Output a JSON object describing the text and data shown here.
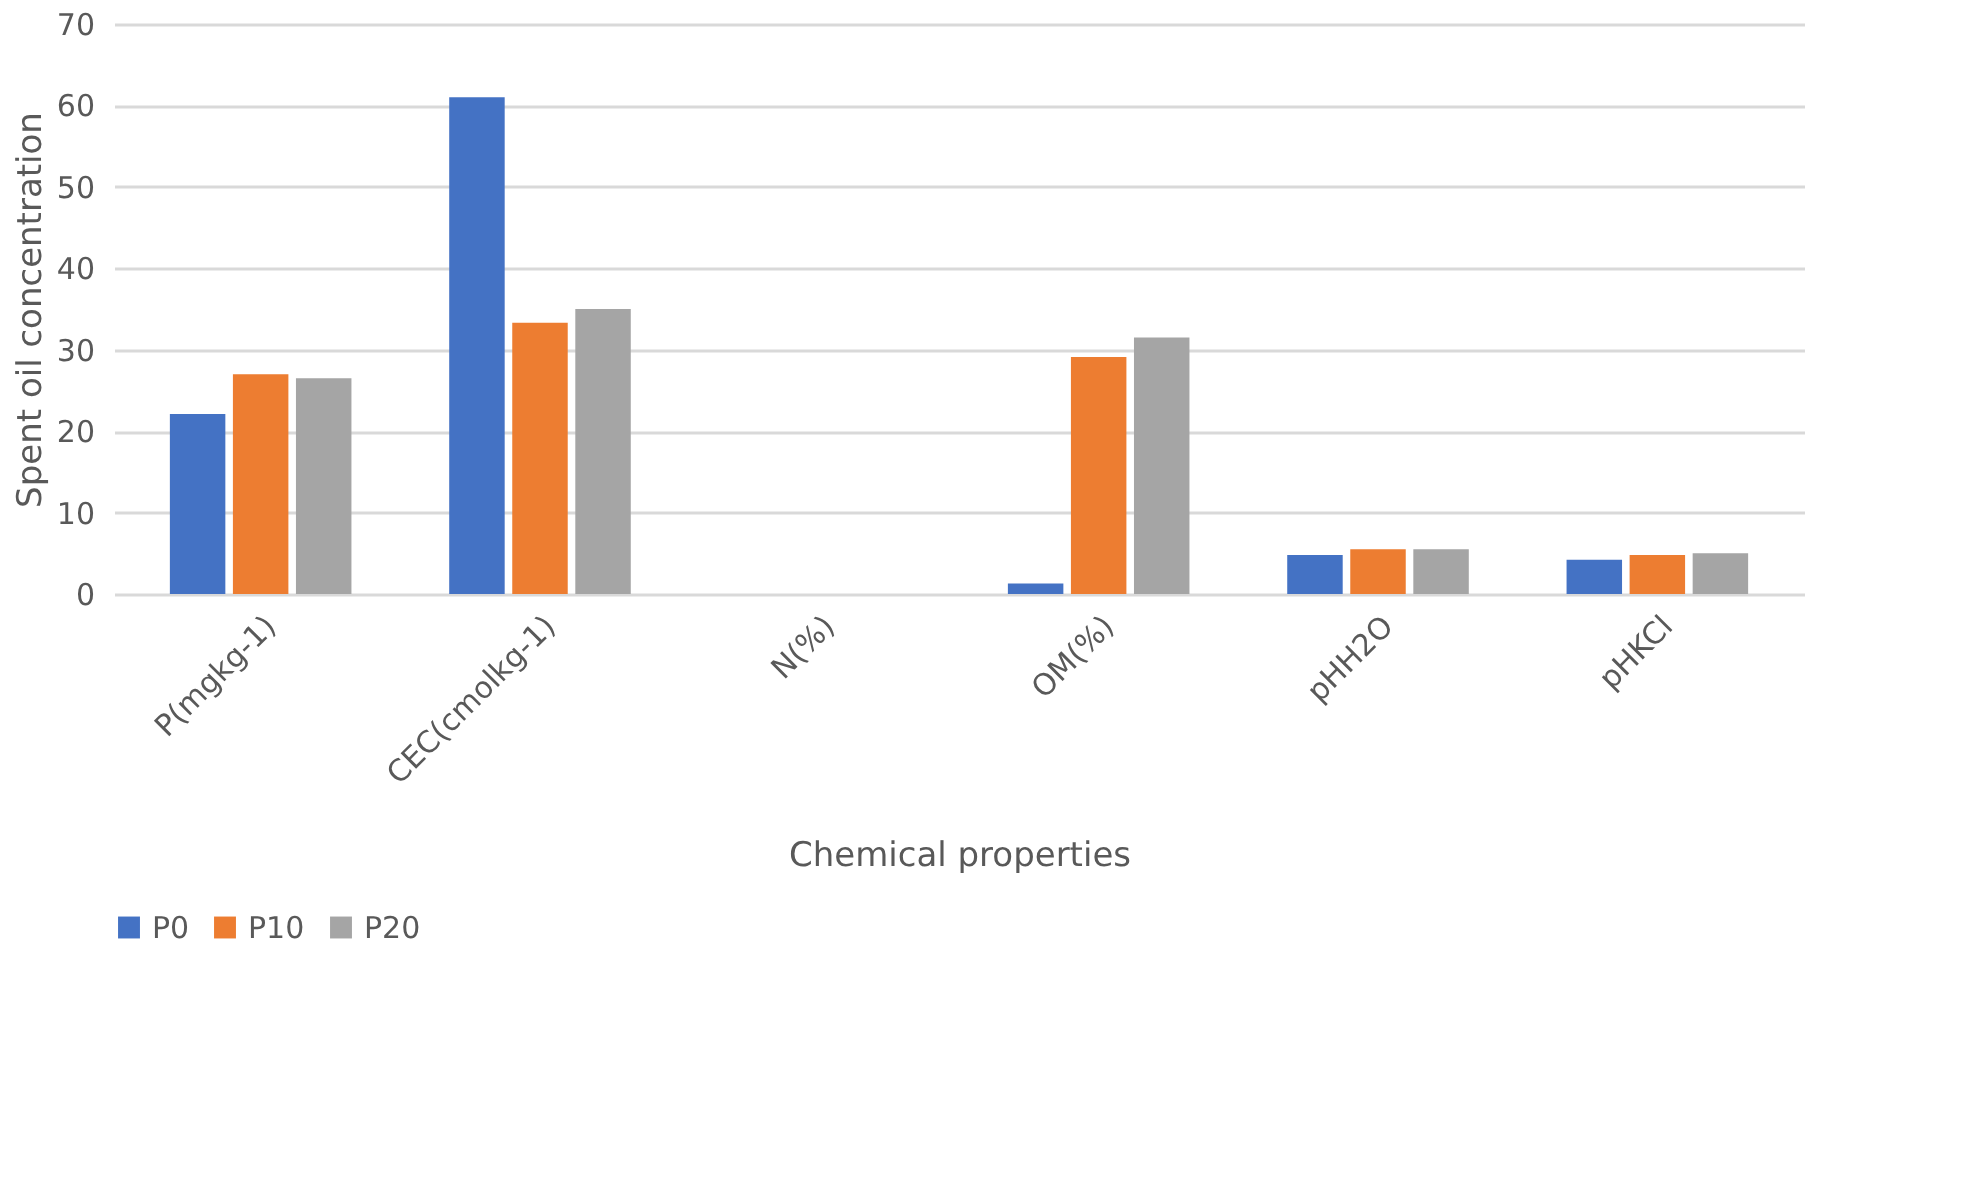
{
  "chart_data": {
    "type": "bar",
    "xlabel": "Chemical properties",
    "ylabel": "Spent oil concentration",
    "categories": [
      "P(mgkg-1)",
      "CEC(cmolkg-1)",
      "N(%)",
      "OM(%)",
      "pHH2O",
      "pHKCl"
    ],
    "series": [
      {
        "name": "P0",
        "color": "#4472c4",
        "values": [
          22.1,
          61.0,
          0,
          1.3,
          4.8,
          4.2
        ]
      },
      {
        "name": "P10",
        "color": "#ed7d31",
        "values": [
          27.0,
          33.3,
          0,
          29.1,
          5.5,
          4.8
        ]
      },
      {
        "name": "P20",
        "color": "#a5a5a5",
        "values": [
          26.5,
          35.0,
          0,
          31.5,
          5.5,
          5.0
        ]
      }
    ],
    "ylim": [
      0,
      70
    ],
    "yticks": [
      0,
      10,
      20,
      30,
      40,
      50,
      60,
      70
    ],
    "grid": "y",
    "legend": "bottom"
  }
}
